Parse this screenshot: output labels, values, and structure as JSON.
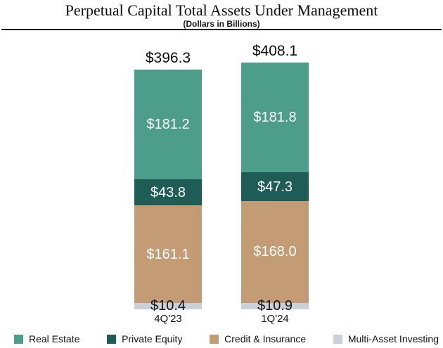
{
  "title": "Perpetual Capital Total Assets Under Management",
  "subtitle": "(Dollars in Billions)",
  "chart_data": {
    "type": "bar",
    "stacked": true,
    "categories": [
      "4Q'23",
      "1Q'24"
    ],
    "totals": [
      396.3,
      408.1
    ],
    "series": [
      {
        "name": "Real Estate",
        "color": "#4C9E8B",
        "label_color": "#ffffff",
        "values": [
          181.2,
          181.8
        ]
      },
      {
        "name": "Private Equity",
        "color": "#1E5C55",
        "label_color": "#ffffff",
        "values": [
          43.8,
          47.3
        ]
      },
      {
        "name": "Credit & Insurance",
        "color": "#C39B75",
        "label_color": "#ffffff",
        "values": [
          161.1,
          168.0
        ]
      },
      {
        "name": "Multi-Asset Investing",
        "color": "#CACFD8",
        "label_color": "#141414",
        "values": [
          10.4,
          10.9
        ]
      }
    ],
    "value_prefix": "$",
    "value_decimals": 1,
    "ylim": [
      0,
      408.1
    ],
    "grid": false,
    "legend_position": "bottom"
  }
}
